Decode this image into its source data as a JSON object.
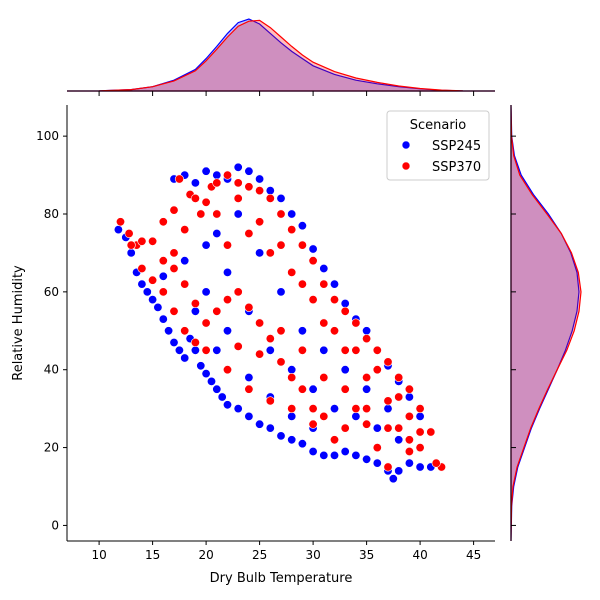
{
  "chart_data": {
    "type": "scatter",
    "subtype": "jointplot with marginal KDE",
    "title": "",
    "xlabel": "Dry Bulb Temperature",
    "ylabel": "Relative Humidity",
    "xlim": [
      7,
      47
    ],
    "ylim": [
      -4,
      108
    ],
    "xticks": [
      10,
      15,
      20,
      25,
      30,
      35,
      40,
      45
    ],
    "yticks": [
      0,
      20,
      40,
      60,
      80,
      100
    ],
    "grid": false,
    "legend": {
      "title": "Scenario",
      "position": "top-right"
    },
    "series": [
      {
        "name": "SSP245",
        "color": "#0000ff",
        "points": [
          [
            11.8,
            76
          ],
          [
            12.5,
            74
          ],
          [
            13,
            70
          ],
          [
            13.5,
            65
          ],
          [
            14,
            62
          ],
          [
            14.5,
            60
          ],
          [
            15,
            58
          ],
          [
            15.5,
            56
          ],
          [
            16,
            53
          ],
          [
            16.5,
            50
          ],
          [
            17,
            47
          ],
          [
            17.5,
            45
          ],
          [
            18,
            43
          ],
          [
            18.5,
            48
          ],
          [
            19,
            45
          ],
          [
            19.5,
            41
          ],
          [
            20,
            39
          ],
          [
            20.5,
            37
          ],
          [
            21,
            35
          ],
          [
            21.5,
            33
          ],
          [
            22,
            31
          ],
          [
            23,
            30
          ],
          [
            24,
            28
          ],
          [
            25,
            26
          ],
          [
            26,
            25
          ],
          [
            27,
            23
          ],
          [
            28,
            22
          ],
          [
            29,
            21
          ],
          [
            30,
            19
          ],
          [
            31,
            18
          ],
          [
            32,
            18
          ],
          [
            33,
            19
          ],
          [
            34,
            18
          ],
          [
            35,
            17
          ],
          [
            36,
            16
          ],
          [
            37,
            14
          ],
          [
            37.5,
            12
          ],
          [
            38,
            14
          ],
          [
            39,
            16
          ],
          [
            40,
            15
          ],
          [
            41,
            15
          ],
          [
            17,
            89
          ],
          [
            18,
            90
          ],
          [
            19,
            88
          ],
          [
            20,
            91
          ],
          [
            21,
            90
          ],
          [
            22,
            89
          ],
          [
            23,
            92
          ],
          [
            24,
            91
          ],
          [
            25,
            89
          ],
          [
            26,
            86
          ],
          [
            27,
            84
          ],
          [
            28,
            80
          ],
          [
            29,
            77
          ],
          [
            30,
            71
          ],
          [
            31,
            66
          ],
          [
            32,
            62
          ],
          [
            33,
            57
          ],
          [
            34,
            53
          ],
          [
            35,
            50
          ],
          [
            36,
            45
          ],
          [
            37,
            41
          ],
          [
            38,
            37
          ],
          [
            39,
            33
          ],
          [
            40,
            28
          ],
          [
            22,
            50
          ],
          [
            24,
            55
          ],
          [
            26,
            45
          ],
          [
            28,
            40
          ],
          [
            30,
            35
          ],
          [
            32,
            30
          ],
          [
            34,
            28
          ],
          [
            36,
            25
          ],
          [
            38,
            22
          ],
          [
            20,
            60
          ],
          [
            22,
            65
          ],
          [
            25,
            70
          ],
          [
            27,
            60
          ],
          [
            29,
            50
          ],
          [
            31,
            45
          ],
          [
            33,
            40
          ],
          [
            35,
            35
          ],
          [
            37,
            30
          ],
          [
            21,
            75
          ],
          [
            23,
            80
          ],
          [
            19,
            55
          ],
          [
            21,
            45
          ],
          [
            24,
            38
          ],
          [
            26,
            33
          ],
          [
            28,
            28
          ],
          [
            30,
            25
          ],
          [
            16,
            64
          ],
          [
            18,
            68
          ],
          [
            20,
            72
          ]
        ]
      },
      {
        "name": "SSP370",
        "color": "#ff0000",
        "points": [
          [
            12,
            78
          ],
          [
            12.8,
            75
          ],
          [
            13.5,
            72
          ],
          [
            14,
            73
          ],
          [
            15,
            73
          ],
          [
            16,
            78
          ],
          [
            16,
            68
          ],
          [
            17,
            70
          ],
          [
            17,
            81
          ],
          [
            17.5,
            89
          ],
          [
            18,
            76
          ],
          [
            18.5,
            85
          ],
          [
            19,
            84
          ],
          [
            19.5,
            80
          ],
          [
            20,
            83
          ],
          [
            20.5,
            87
          ],
          [
            21,
            88
          ],
          [
            22,
            90
          ],
          [
            23,
            88
          ],
          [
            24,
            87
          ],
          [
            25,
            86
          ],
          [
            26,
            84
          ],
          [
            27,
            80
          ],
          [
            28,
            76
          ],
          [
            29,
            72
          ],
          [
            30,
            68
          ],
          [
            31,
            62
          ],
          [
            32,
            58
          ],
          [
            33,
            55
          ],
          [
            34,
            52
          ],
          [
            35,
            48
          ],
          [
            36,
            45
          ],
          [
            37,
            42
          ],
          [
            38,
            38
          ],
          [
            39,
            35
          ],
          [
            40,
            30
          ],
          [
            41,
            24
          ],
          [
            42,
            15
          ],
          [
            41.5,
            16
          ],
          [
            40,
            20
          ],
          [
            39,
            22
          ],
          [
            38,
            25
          ],
          [
            37,
            15
          ],
          [
            36,
            20
          ],
          [
            35,
            26
          ],
          [
            34,
            30
          ],
          [
            33,
            25
          ],
          [
            32,
            22
          ],
          [
            31,
            28
          ],
          [
            30,
            30
          ],
          [
            29,
            35
          ],
          [
            28,
            38
          ],
          [
            27,
            42
          ],
          [
            26,
            48
          ],
          [
            25,
            52
          ],
          [
            24,
            56
          ],
          [
            23,
            60
          ],
          [
            22,
            58
          ],
          [
            21,
            55
          ],
          [
            20,
            52
          ],
          [
            19,
            57
          ],
          [
            18,
            62
          ],
          [
            17,
            66
          ],
          [
            16,
            60
          ],
          [
            15,
            63
          ],
          [
            14,
            66
          ],
          [
            13,
            72
          ],
          [
            22,
            72
          ],
          [
            24,
            75
          ],
          [
            26,
            70
          ],
          [
            28,
            65
          ],
          [
            30,
            58
          ],
          [
            32,
            50
          ],
          [
            34,
            45
          ],
          [
            36,
            40
          ],
          [
            38,
            33
          ],
          [
            21,
            80
          ],
          [
            23,
            84
          ],
          [
            25,
            78
          ],
          [
            27,
            72
          ],
          [
            29,
            62
          ],
          [
            31,
            52
          ],
          [
            33,
            45
          ],
          [
            35,
            38
          ],
          [
            37,
            32
          ],
          [
            39,
            28
          ],
          [
            20,
            45
          ],
          [
            22,
            40
          ],
          [
            24,
            35
          ],
          [
            26,
            32
          ],
          [
            28,
            30
          ],
          [
            30,
            26
          ],
          [
            18,
            50
          ],
          [
            19,
            47
          ],
          [
            17,
            55
          ],
          [
            23,
            46
          ],
          [
            25,
            44
          ],
          [
            27,
            50
          ],
          [
            29,
            45
          ],
          [
            31,
            38
          ],
          [
            33,
            35
          ],
          [
            35,
            30
          ],
          [
            37,
            25
          ],
          [
            39,
            19
          ],
          [
            40,
            24
          ]
        ]
      }
    ],
    "marginal_x": {
      "type": "kde",
      "axis_values": [
        7,
        10,
        13,
        15,
        17,
        19,
        20,
        21,
        22,
        23,
        24,
        25,
        26,
        27,
        28,
        29,
        30,
        32,
        34,
        36,
        38,
        40,
        42,
        44,
        47
      ],
      "SSP245": [
        0,
        0.002,
        0.02,
        0.06,
        0.15,
        0.3,
        0.45,
        0.62,
        0.8,
        0.95,
        1.0,
        0.93,
        0.8,
        0.67,
        0.55,
        0.45,
        0.35,
        0.23,
        0.15,
        0.1,
        0.06,
        0.03,
        0.01,
        0.002,
        0
      ],
      "SSP370": [
        0,
        0.002,
        0.02,
        0.06,
        0.14,
        0.28,
        0.42,
        0.58,
        0.75,
        0.9,
        0.97,
        0.98,
        0.88,
        0.75,
        0.62,
        0.5,
        0.4,
        0.27,
        0.18,
        0.12,
        0.07,
        0.035,
        0.012,
        0.002,
        0
      ]
    },
    "marginal_y": {
      "type": "kde",
      "axis_values": [
        -4,
        5,
        10,
        15,
        20,
        25,
        30,
        35,
        40,
        45,
        50,
        55,
        60,
        65,
        70,
        75,
        80,
        85,
        90,
        95,
        100,
        108
      ],
      "SSP245": [
        0,
        0.01,
        0.04,
        0.1,
        0.2,
        0.3,
        0.42,
        0.55,
        0.68,
        0.8,
        0.9,
        0.97,
        1.0,
        0.97,
        0.88,
        0.74,
        0.55,
        0.33,
        0.15,
        0.05,
        0.01,
        0
      ],
      "SSP370": [
        0,
        0.008,
        0.03,
        0.09,
        0.19,
        0.29,
        0.41,
        0.54,
        0.68,
        0.82,
        0.93,
        1.0,
        1.03,
        0.99,
        0.89,
        0.74,
        0.53,
        0.31,
        0.13,
        0.04,
        0.008,
        0
      ]
    }
  }
}
